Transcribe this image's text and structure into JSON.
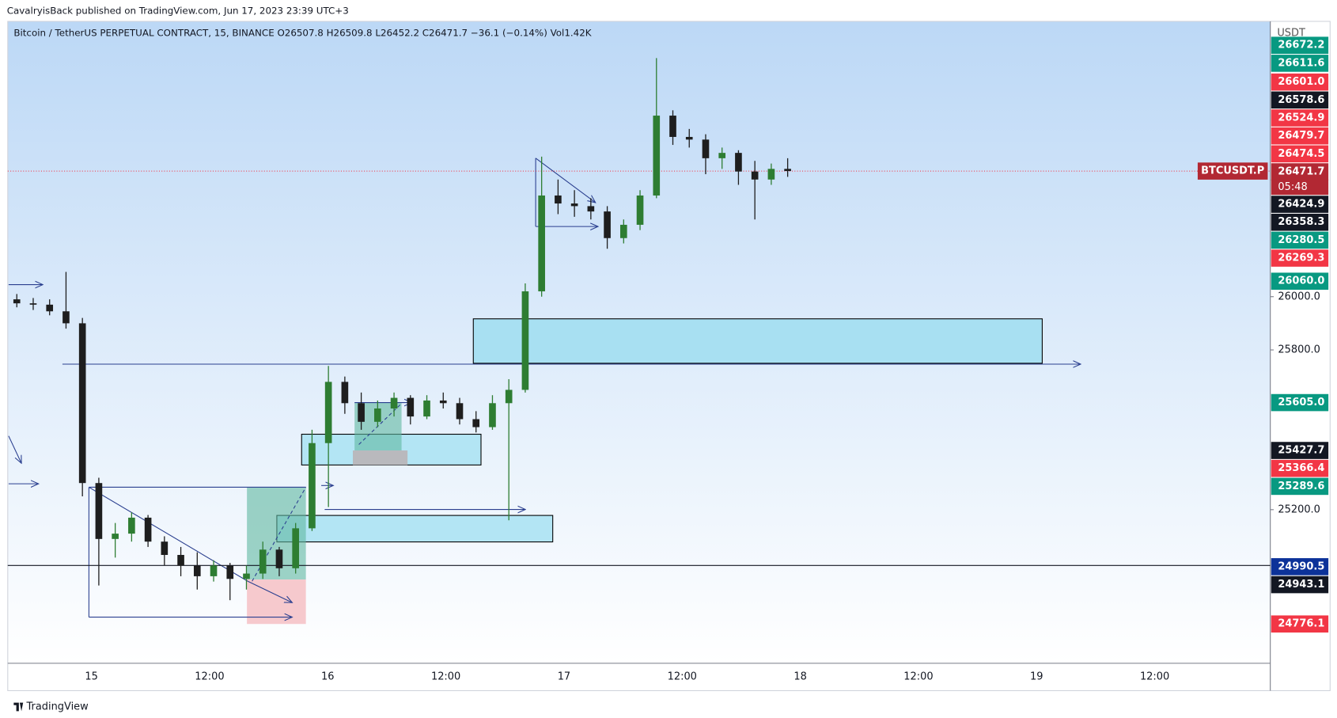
{
  "chart_data": {
    "type": "candlestick",
    "header": "CavalryisBack published on TradingView.com, Jun 17, 2023 23:39 UTC+3",
    "legend": "Bitcoin / TetherUS PERPETUAL CONTRACT, 15, BINANCE  O26507.8  H26509.8  L26452.2  C26471.7  −36.1 (−0.14%)  Vol1.42K",
    "axis_unit": "USDT",
    "symbol_label": "BTCUSDT.P",
    "countdown": "05:48",
    "footer": "TradingView",
    "up_color": "#2e7d32",
    "down_color": "#1e1e1e",
    "ylim": [
      24623,
      27034
    ],
    "yticks": [
      {
        "value": 25200,
        "label": "25200.0"
      },
      {
        "value": 25800,
        "label": "25800.0"
      },
      {
        "value": 26000,
        "label": "26000.0"
      }
    ],
    "last_price": 26471.7,
    "hline": 24990.5,
    "x_labels": [
      "15",
      "12:00",
      "16",
      "12:00",
      "17",
      "12:00",
      "18",
      "12:00",
      "19",
      "12:00"
    ],
    "open": [
      25990,
      25975,
      25970,
      25945,
      25900,
      25300,
      25090,
      25110,
      25170,
      25080,
      25030,
      24990,
      24950,
      24990,
      24940,
      24960,
      25050,
      24980,
      25130,
      25450,
      25680,
      25600,
      25530,
      25580,
      25620,
      25550,
      25610,
      25600,
      25540,
      25510,
      25600,
      25650,
      26020,
      26380,
      26350,
      26340,
      26320,
      26220,
      26270,
      26380,
      26680,
      26600,
      26590,
      26520,
      26540,
      26470,
      26440,
      26480
    ],
    "high": [
      26010,
      25995,
      25990,
      26093,
      25920,
      25320,
      25150,
      25190,
      25180,
      25100,
      25060,
      25040,
      25010,
      25000,
      24990,
      25080,
      25060,
      25150,
      25500,
      25740,
      25700,
      25640,
      25610,
      25640,
      25630,
      25630,
      25640,
      25620,
      25570,
      25630,
      25690,
      26050,
      26526,
      26440,
      26400,
      26370,
      26340,
      26290,
      26400,
      26896,
      26700,
      26630,
      26610,
      26560,
      26550,
      26510,
      26500,
      26520
    ],
    "low": [
      25960,
      25950,
      25930,
      25880,
      25250,
      24915,
      25020,
      25080,
      25060,
      24990,
      24950,
      24900,
      24930,
      24860,
      24900,
      24940,
      24950,
      24960,
      25120,
      25210,
      25560,
      25500,
      25510,
      25550,
      25520,
      25540,
      25580,
      25520,
      25490,
      25500,
      25160,
      25640,
      26000,
      26310,
      26300,
      26290,
      26180,
      26200,
      26250,
      26370,
      26570,
      26560,
      26460,
      26480,
      26420,
      26290,
      26420,
      26450
    ],
    "close": [
      25975,
      25970,
      25945,
      25900,
      25300,
      25090,
      25110,
      25170,
      25080,
      25030,
      24990,
      24950,
      24990,
      24940,
      24960,
      25050,
      24980,
      25130,
      25450,
      25680,
      25600,
      25530,
      25580,
      25620,
      25550,
      25610,
      25600,
      25540,
      25510,
      25600,
      25650,
      26020,
      26380,
      26350,
      26340,
      26320,
      26220,
      26270,
      26380,
      26680,
      26600,
      26590,
      26520,
      26540,
      26470,
      26440,
      26480,
      26472
    ],
    "price_labels": [
      {
        "text": "26672.2",
        "color": "#089981"
      },
      {
        "text": "26611.6",
        "color": "#089981"
      },
      {
        "text": "26601.0",
        "color": "#f23645"
      },
      {
        "text": "26578.6",
        "color": "#131722"
      },
      {
        "text": "26524.9",
        "color": "#f23645"
      },
      {
        "text": "26479.7",
        "color": "#f23645"
      },
      {
        "text": "26474.5",
        "color": "#f23645"
      },
      {
        "text": "26471.7",
        "color": "#b22833"
      },
      {
        "text": "26424.9",
        "color": "#131722"
      },
      {
        "text": "26358.3",
        "color": "#131722"
      },
      {
        "text": "26280.5",
        "color": "#089981"
      },
      {
        "text": "26269.3",
        "color": "#f23645"
      },
      {
        "text": "26060.0",
        "color": "#089981"
      },
      {
        "text": "25605.0",
        "color": "#089981"
      },
      {
        "text": "25427.7",
        "color": "#131722"
      },
      {
        "text": "25366.4",
        "color": "#f23645"
      },
      {
        "text": "25289.6",
        "color": "#089981"
      },
      {
        "text": "24990.5",
        "color": "#0c3299"
      },
      {
        "text": "24943.1",
        "color": "#131722"
      },
      {
        "text": "24776.1",
        "color": "#f23645"
      }
    ]
  }
}
